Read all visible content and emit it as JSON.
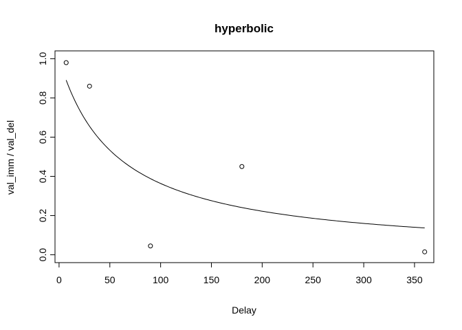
{
  "chart_data": {
    "type": "scatter",
    "title": "hyperbolic",
    "xlabel": "Delay",
    "ylabel": "val_imm / val_del",
    "xlim": [
      -4,
      369
    ],
    "ylim": [
      -0.04,
      1.04
    ],
    "x_ticks": [
      0,
      50,
      100,
      150,
      200,
      250,
      300,
      350
    ],
    "y_ticks": [
      0.0,
      0.2,
      0.4,
      0.6,
      0.8,
      1.0
    ],
    "x_tick_labels": [
      "0",
      "50",
      "100",
      "150",
      "200",
      "250",
      "300",
      "350"
    ],
    "y_tick_labels": [
      "0.0",
      "0.2",
      "0.4",
      "0.6",
      "0.8",
      "1.0"
    ],
    "grid": false,
    "legend": "none",
    "points": [
      {
        "x": 7,
        "y": 0.98
      },
      {
        "x": 30,
        "y": 0.86
      },
      {
        "x": 90,
        "y": 0.045
      },
      {
        "x": 180,
        "y": 0.45
      },
      {
        "x": 360,
        "y": 0.015
      }
    ],
    "fit_curve": {
      "model": "1 / (1 + k * x)",
      "k": 0.0175,
      "x_range": [
        7,
        360
      ]
    },
    "colors": {
      "points": "#000000",
      "curve": "#000000",
      "axes": "#000000"
    }
  }
}
